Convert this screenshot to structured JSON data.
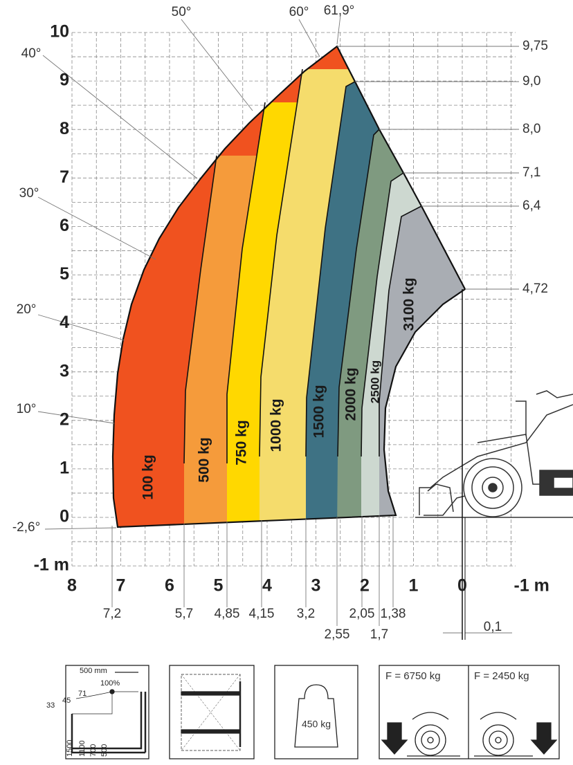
{
  "axes": {
    "y_labels": [
      "10",
      "9",
      "8",
      "7",
      "6",
      "5",
      "4",
      "3",
      "2",
      "1",
      "0",
      "-1 m"
    ],
    "x_labels": [
      "8",
      "7",
      "6",
      "5",
      "4",
      "3",
      "2",
      "1",
      "0",
      "-1 m"
    ]
  },
  "angles": [
    "50°",
    "60°",
    "61,9°",
    "40°",
    "30°",
    "20°",
    "10°",
    "-2,6°"
  ],
  "heights": [
    "9,75",
    "9,0",
    "8,0",
    "7,1",
    "6,4",
    "4,72"
  ],
  "distances": [
    "7,2",
    "5,7",
    "4,85",
    "4,15",
    "3,2",
    "2,05",
    "1,38",
    "2,55",
    "1,7",
    "0,1"
  ],
  "zones": [
    "100 kg",
    "500 kg",
    "750 kg",
    "1000 kg",
    "1500 kg",
    "2000 kg",
    "2500 kg",
    "3100 kg"
  ],
  "icons": {
    "reach": {
      "width": "500 mm",
      "percent": "100%",
      "angles": [
        "71",
        "45",
        "33"
      ],
      "heights": [
        "1500",
        "1100",
        "700",
        "500"
      ]
    },
    "weight": "450 kg",
    "forces": [
      "F = 6750 kg",
      "F = 2450 kg"
    ]
  }
}
